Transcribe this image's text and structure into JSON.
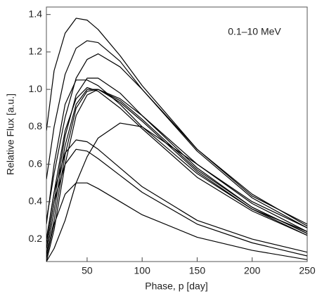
{
  "chart_data": {
    "type": "line",
    "annotation": "0.1–10 MeV",
    "xlabel": "Phase, p [day]",
    "ylabel": "Relative Flux [a.u.]",
    "x": [
      13,
      20,
      30,
      40,
      50,
      60,
      80,
      100,
      150,
      200,
      250
    ],
    "xlim": [
      13,
      250
    ],
    "xticks": [
      50,
      100,
      150,
      200,
      250
    ],
    "ylim": [
      0.08,
      1.44
    ],
    "yticks": [
      0.2,
      0.4,
      0.6,
      0.8,
      {
        "value": 1,
        "label": "1.0"
      },
      1.2,
      1.4
    ],
    "series": [
      {
        "color": "#000000",
        "values": [
          0.78,
          1.1,
          1.3,
          1.38,
          1.37,
          1.32,
          1.18,
          1.02,
          0.68,
          0.43,
          0.28
        ]
      },
      {
        "color": "#000000",
        "values": [
          0.52,
          0.8,
          1.08,
          1.22,
          1.26,
          1.25,
          1.15,
          1.0,
          0.68,
          0.44,
          0.27
        ]
      },
      {
        "color": "#000000",
        "values": [
          0.3,
          0.55,
          0.85,
          1.06,
          1.16,
          1.19,
          1.12,
          1.0,
          0.67,
          0.42,
          0.26
        ]
      },
      {
        "color": "#000000",
        "values": [
          0.28,
          0.6,
          0.92,
          1.05,
          1.05,
          1.02,
          0.92,
          0.8,
          0.55,
          0.36,
          0.24
        ]
      },
      {
        "color": "#000000",
        "values": [
          0.15,
          0.4,
          0.75,
          0.97,
          1.06,
          1.06,
          0.98,
          0.86,
          0.58,
          0.37,
          0.23
        ]
      },
      {
        "color": "#000000",
        "values": [
          0.12,
          0.35,
          0.7,
          0.92,
          1.0,
          1.0,
          0.93,
          0.83,
          0.56,
          0.36,
          0.22
        ]
      },
      {
        "color": "#000000",
        "values": [
          0.1,
          0.3,
          0.65,
          0.9,
          0.99,
          1.0,
          0.94,
          0.84,
          0.57,
          0.37,
          0.23
        ]
      },
      {
        "color": "#000000",
        "values": [
          0.18,
          0.45,
          0.78,
          0.95,
          1.01,
          0.99,
          0.9,
          0.79,
          0.53,
          0.35,
          0.22
        ]
      },
      {
        "color": "#000000",
        "values": [
          0.08,
          0.25,
          0.6,
          0.86,
          0.97,
          1.0,
          0.95,
          0.86,
          0.6,
          0.39,
          0.24
        ]
      },
      {
        "color": "#000000",
        "values": [
          0.2,
          0.45,
          0.66,
          0.73,
          0.72,
          0.68,
          0.58,
          0.48,
          0.3,
          0.2,
          0.13
        ]
      },
      {
        "color": "#000000",
        "values": [
          0.15,
          0.4,
          0.6,
          0.68,
          0.67,
          0.63,
          0.54,
          0.45,
          0.28,
          0.18,
          0.11
        ]
      },
      {
        "color": "#000000",
        "values": [
          0.1,
          0.28,
          0.44,
          0.5,
          0.5,
          0.47,
          0.4,
          0.33,
          0.21,
          0.14,
          0.09
        ]
      },
      {
        "color": "#000000",
        "values": [
          0.08,
          0.15,
          0.3,
          0.5,
          0.64,
          0.74,
          0.82,
          0.8,
          0.6,
          0.4,
          0.26
        ]
      }
    ]
  }
}
